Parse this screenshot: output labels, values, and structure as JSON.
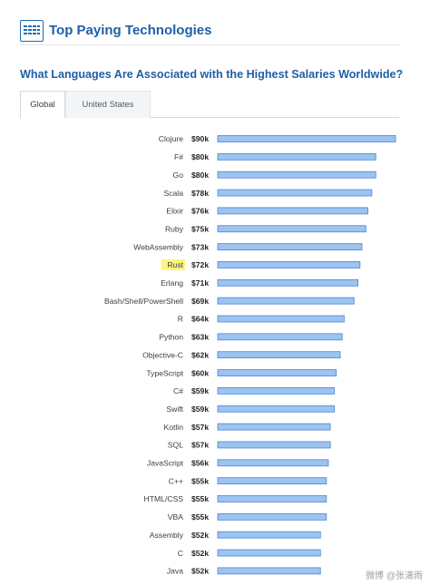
{
  "header": {
    "title": "Top Paying Technologies"
  },
  "question": "What Languages Are Associated with the Highest Salaries Worldwide?",
  "tabs": [
    {
      "label": "Global",
      "active": true
    },
    {
      "label": "United States",
      "active": false
    }
  ],
  "watermark": "微博 @张潇雨",
  "colors": {
    "bar_fill": "#9dc3f0",
    "bar_stroke": "#4a86d6",
    "title": "#1f5fa8",
    "highlight": "#fff480"
  },
  "chart_data": {
    "type": "bar",
    "orientation": "horizontal",
    "categories": [
      "Clojure",
      "F#",
      "Go",
      "Scala",
      "Elixir",
      "Ruby",
      "WebAssembly",
      "Rust",
      "Erlang",
      "Bash/Shell/PowerShell",
      "R",
      "Python",
      "Objective-C",
      "TypeScript",
      "C#",
      "Swift",
      "Kotlin",
      "SQL",
      "JavaScript",
      "C++",
      "HTML/CSS",
      "VBA",
      "Assembly",
      "C",
      "Java"
    ],
    "values": [
      90,
      80,
      80,
      78,
      76,
      75,
      73,
      72,
      71,
      69,
      64,
      63,
      62,
      60,
      59,
      59,
      57,
      57,
      56,
      55,
      55,
      55,
      52,
      52,
      52
    ],
    "value_labels": [
      "$90k",
      "$80k",
      "$80k",
      "$78k",
      "$76k",
      "$75k",
      "$73k",
      "$72k",
      "$71k",
      "$69k",
      "$64k",
      "$63k",
      "$62k",
      "$60k",
      "$59k",
      "$59k",
      "$57k",
      "$57k",
      "$56k",
      "$55k",
      "$55k",
      "$55k",
      "$52k",
      "$52k",
      "$52k"
    ],
    "highlighted": [
      "Rust"
    ],
    "xlim": [
      0,
      90
    ]
  }
}
